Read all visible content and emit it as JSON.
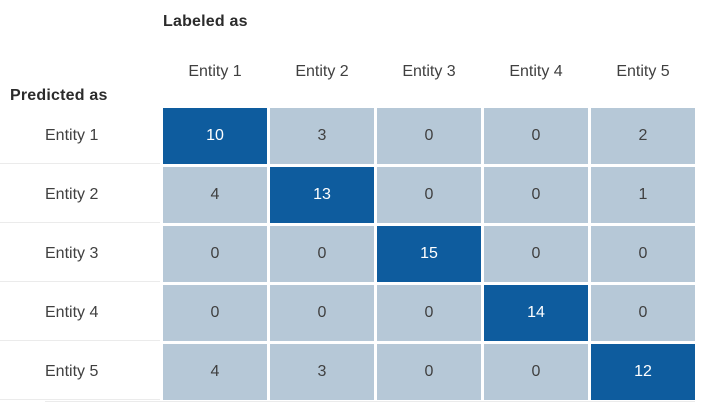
{
  "chart_data": {
    "type": "heatmap",
    "x_axis_label": "Labeled as",
    "y_axis_label": "Predicted as",
    "columns": [
      "Entity 1",
      "Entity 2",
      "Entity 3",
      "Entity 4",
      "Entity 5"
    ],
    "rows": [
      "Entity 1",
      "Entity 2",
      "Entity 3",
      "Entity 4",
      "Entity 5"
    ],
    "values": [
      [
        10,
        3,
        0,
        0,
        2
      ],
      [
        4,
        13,
        0,
        0,
        1
      ],
      [
        0,
        0,
        15,
        0,
        0
      ],
      [
        0,
        0,
        0,
        14,
        0
      ],
      [
        4,
        3,
        0,
        0,
        12
      ]
    ],
    "diagonal_highlighted": true,
    "grid": "white gaps between cells",
    "legend": "none"
  },
  "colors": {
    "diagonal_cell_bg": "#0E5C9E",
    "diagonal_cell_text": "#FFFFFF",
    "off_diagonal_cell_bg": "#B6C8D7",
    "off_diagonal_cell_text": "#404040",
    "axis_title_text": "#2B2B2B",
    "label_text": "#404040",
    "row_divider": "#EBEBEB",
    "background": "#FFFFFF"
  }
}
